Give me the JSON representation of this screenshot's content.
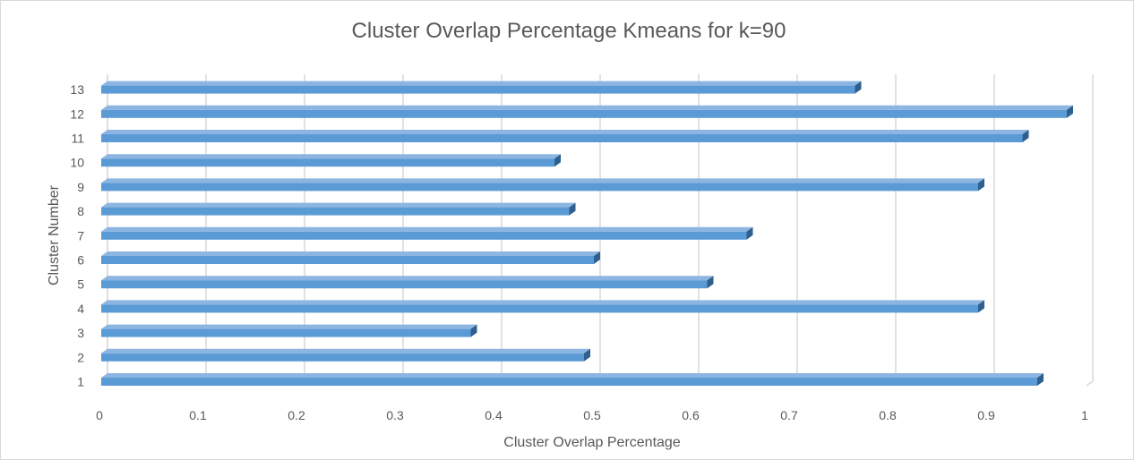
{
  "chart_data": {
    "type": "bar",
    "orientation": "horizontal",
    "title": "Cluster Overlap Percentage Kmeans for k=90",
    "xlabel": "Cluster Overlap Percentage",
    "ylabel": "Cluster Number",
    "categories": [
      "1",
      "2",
      "3",
      "4",
      "5",
      "6",
      "7",
      "8",
      "9",
      "10",
      "11",
      "12",
      "13"
    ],
    "values": [
      0.95,
      0.49,
      0.375,
      0.89,
      0.615,
      0.5,
      0.655,
      0.475,
      0.89,
      0.46,
      0.935,
      0.98,
      0.765
    ],
    "xlim": [
      0,
      1
    ],
    "xticks": [
      "0",
      "0.1",
      "0.2",
      "0.3",
      "0.4",
      "0.5",
      "0.6",
      "0.7",
      "0.8",
      "0.9",
      "1"
    ],
    "grid": true,
    "legend": "none",
    "bar_style": "3d",
    "colors": {
      "bar_front": "#5b9bd5",
      "bar_top": "#8db5e2",
      "bar_side": "#2e5f8e",
      "grid": "#d9d9d9",
      "text": "#595959"
    }
  }
}
